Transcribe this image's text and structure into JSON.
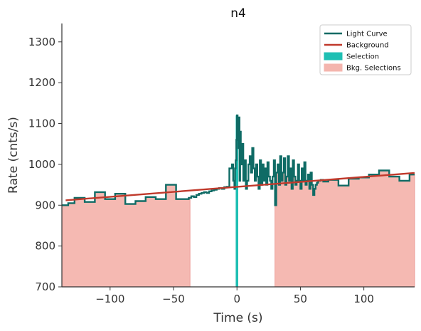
{
  "chart_data": {
    "type": "line",
    "title": "n4",
    "xlabel": "Time (s)",
    "ylabel": "Rate (cnts/s)",
    "xlim": [
      -138,
      140
    ],
    "ylim": [
      700,
      1345
    ],
    "x_ticks": [
      -100,
      -50,
      0,
      50,
      100
    ],
    "x_tick_labels": [
      "−100",
      "−50",
      "0",
      "50",
      "100"
    ],
    "y_ticks": [
      700,
      800,
      900,
      1000,
      1100,
      1200,
      1300
    ],
    "y_tick_labels": [
      "700",
      "800",
      "900",
      "1000",
      "1100",
      "1200",
      "1300"
    ],
    "grid": false,
    "legend_position": "top-right",
    "legend": [
      {
        "label": "Light Curve",
        "kind": "line",
        "color": "#0f6b65"
      },
      {
        "label": "Background",
        "kind": "line",
        "color": "#c0392b"
      },
      {
        "label": "Selection",
        "kind": "patch",
        "color": "#1fbfb3"
      },
      {
        "label": "Bkg. Selections",
        "kind": "patch",
        "color": "#f4b5ae"
      }
    ],
    "series": [
      {
        "name": "Light Curve",
        "color": "#0f6b65",
        "step": true,
        "x": [
          -138,
          -133,
          -128,
          -120,
          -112,
          -104,
          -96,
          -88,
          -80,
          -72,
          -64,
          -56,
          -48,
          -40,
          -38,
          -36,
          -34,
          -32,
          -30,
          -28,
          -26,
          -24,
          -22,
          -20,
          -18,
          -16,
          -14,
          -12,
          -10,
          -8,
          -6,
          -4,
          -3,
          -2,
          -1.5,
          -1,
          -0.5,
          0,
          0.5,
          1,
          1.5,
          2,
          2.5,
          3,
          4,
          5,
          6,
          7,
          8,
          9,
          10,
          11,
          12,
          13,
          14,
          15,
          16,
          17,
          18,
          19,
          20,
          21,
          22,
          23,
          24,
          25,
          26,
          27,
          28,
          29,
          30,
          31,
          32,
          33,
          34,
          35,
          36,
          37,
          38,
          39,
          40,
          41,
          42,
          43,
          44,
          45,
          46,
          47,
          48,
          49,
          50,
          51,
          52,
          53,
          54,
          55,
          56,
          57,
          58,
          59,
          60,
          61,
          62,
          63,
          64,
          66,
          68,
          72,
          80,
          88,
          96,
          104,
          112,
          120,
          128,
          136,
          140
        ],
        "y": [
          900,
          905,
          918,
          908,
          932,
          915,
          928,
          903,
          910,
          920,
          915,
          950,
          915,
          915,
          918,
          922,
          920,
          925,
          928,
          930,
          932,
          930,
          934,
          936,
          938,
          940,
          942,
          940,
          944,
          945,
          990,
          1000,
          960,
          940,
          990,
          1010,
          1060,
          1120,
          1100,
          1040,
          1115,
          960,
          1080,
          1000,
          1050,
          960,
          1010,
          940,
          960,
          1000,
          1020,
          980,
          1040,
          990,
          960,
          1000,
          970,
          940,
          1010,
          950,
          1000,
          960,
          990,
          950,
          1005,
          970,
          960,
          940,
          970,
          1010,
          900,
          980,
          1000,
          950,
          1020,
          960,
          980,
          1015,
          950,
          970,
          1020,
          960,
          990,
          940,
          1010,
          970,
          950,
          960,
          1000,
          960,
          940,
          990,
          960,
          1005,
          950,
          960,
          975,
          940,
          980,
          950,
          925,
          940,
          950,
          955,
          960,
          962,
          958,
          962,
          948,
          965,
          968,
          975,
          985,
          970,
          960,
          975,
          975
        ]
      },
      {
        "name": "Background",
        "color": "#c0392b",
        "x": [
          -135,
          140
        ],
        "y": [
          912,
          979
        ]
      }
    ],
    "selection": {
      "x_start": -1,
      "x_end": 1,
      "color": "#1fbfb3"
    },
    "bkg_selections": [
      {
        "x_start": -138,
        "x_end": -37,
        "color": "#f4b5ae"
      },
      {
        "x_start": 30,
        "x_end": 140,
        "color": "#f4b5ae"
      }
    ]
  }
}
